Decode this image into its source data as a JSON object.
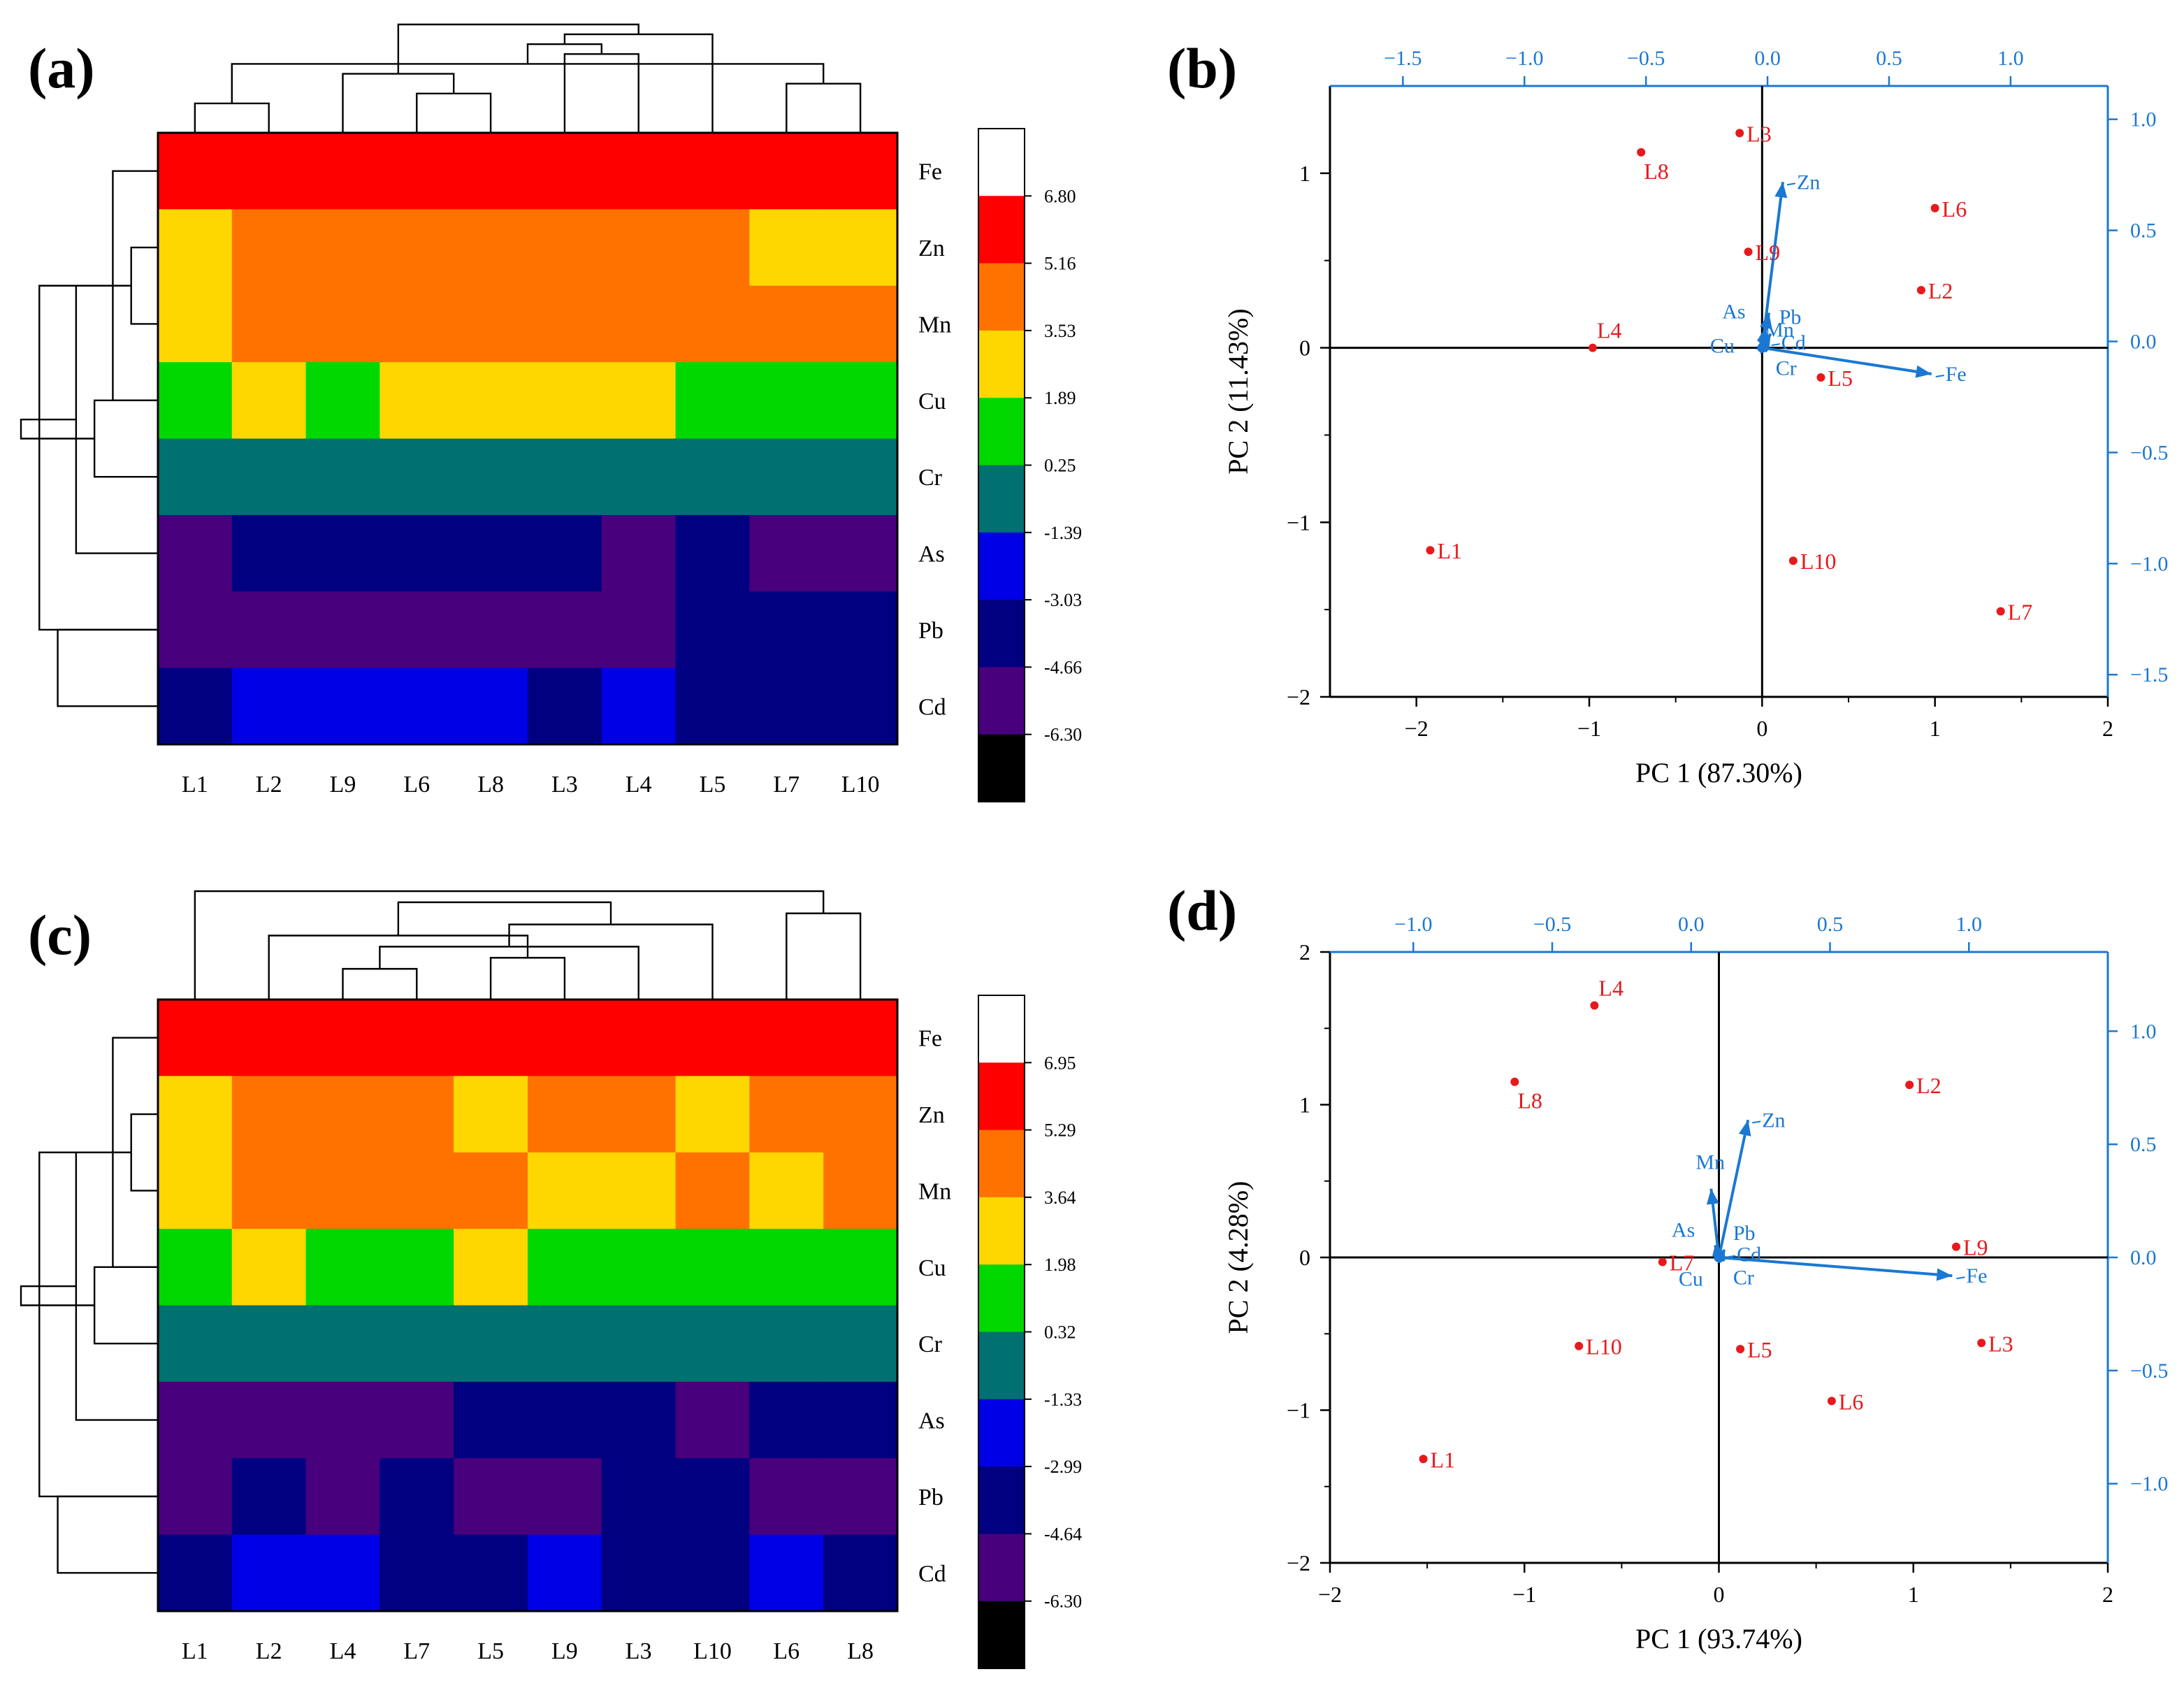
{
  "colors": {
    "scale": [
      "#000000",
      "#48007d",
      "#000080",
      "#0000e6",
      "#007070",
      "#00d800",
      "#ffd700",
      "#ff7200",
      "#ff0000",
      "#ffffff"
    ],
    "axis": "#000000",
    "pc_axis": "#1a78d2",
    "point": "#e8191c",
    "vector": "#1a78d2"
  },
  "chart_data": [
    {
      "panel": "(a)",
      "type": "heatmap",
      "rows": [
        "Fe",
        "Zn",
        "Mn",
        "Cu",
        "Cr",
        "As",
        "Pb",
        "Cd"
      ],
      "columns": [
        "L1",
        "L2",
        "L9",
        "L6",
        "L8",
        "L3",
        "L4",
        "L5",
        "L7",
        "L10"
      ],
      "color_levels": [
        8,
        7,
        7,
        5,
        4,
        1,
        1,
        2
      ],
      "values": [
        [
          8,
          8,
          8,
          8,
          8,
          8,
          8,
          8,
          8,
          8
        ],
        [
          6,
          7,
          7,
          7,
          7,
          7,
          7,
          7,
          6,
          6
        ],
        [
          6,
          7,
          7,
          7,
          7,
          7,
          7,
          7,
          7,
          7
        ],
        [
          5,
          6,
          5,
          6,
          6,
          6,
          6,
          5,
          5,
          5
        ],
        [
          4,
          4,
          4,
          4,
          4,
          4,
          4,
          4,
          4,
          4
        ],
        [
          1,
          2,
          2,
          2,
          2,
          2,
          1,
          2,
          1,
          1
        ],
        [
          1,
          1,
          1,
          1,
          1,
          1,
          1,
          2,
          2,
          2
        ],
        [
          2,
          3,
          3,
          3,
          3,
          2,
          3,
          2,
          2,
          2
        ]
      ],
      "colorbar_ticks": [
        "6.80",
        "5.16",
        "3.53",
        "1.89",
        "0.25",
        "-1.39",
        "-3.03",
        "-4.66",
        "-6.30"
      ],
      "column_dendrogram": [
        [
          0,
          1
        ],
        [
          3,
          4
        ],
        [
          8,
          9
        ],
        [
          2,
          11
        ],
        [
          10,
          12
        ],
        [
          5,
          6
        ],
        [
          14,
          15
        ],
        [
          7,
          16
        ],
        [
          13,
          17
        ]
      ],
      "row_dendrogram": [
        [
          1,
          2
        ],
        [
          0,
          3
        ],
        [
          3,
          4
        ],
        [
          9,
          5
        ],
        [
          6,
          7
        ],
        [
          8,
          6
        ],
        [
          10,
          11
        ]
      ]
    },
    {
      "panel": "(b)",
      "type": "scatter",
      "title": "",
      "xlabel": "PC 1 (87.30%)",
      "ylabel": "PC 2 (11.43%)",
      "xlim": [
        -2.5,
        2
      ],
      "ylim": [
        -2,
        1.5
      ],
      "x_ticks": [
        -2,
        -1,
        0,
        1,
        2
      ],
      "y_ticks": [
        -2,
        -1,
        0,
        1
      ],
      "x_tick_labels": [
        "−2",
        "−1",
        "0",
        "1",
        "2"
      ],
      "y_tick_labels": [
        "−2",
        "−1",
        "0",
        "1"
      ],
      "top_xlim": [
        -1.8,
        1.4
      ],
      "right_ylim": [
        -1.6,
        1.15
      ],
      "top_ticks": [
        -1.5,
        -1.0,
        -0.5,
        0.0,
        0.5,
        1.0
      ],
      "right_ticks": [
        -1.5,
        -1.0,
        -0.5,
        0.0,
        0.5,
        1.0
      ],
      "top_tick_labels": [
        "−1.5",
        "−1.0",
        "−0.5",
        "0.0",
        "0.5",
        "1.0"
      ],
      "right_tick_labels": [
        "−1.5",
        "−1.0",
        "−0.5",
        "0.0",
        "0.5",
        "1.0"
      ],
      "points": [
        {
          "label": "L1",
          "x": -1.92,
          "y": -1.16
        },
        {
          "label": "L2",
          "x": 0.92,
          "y": 0.33
        },
        {
          "label": "L3",
          "x": -0.13,
          "y": 1.23
        },
        {
          "label": "L4",
          "x": -0.98,
          "y": 0.0
        },
        {
          "label": "L5",
          "x": 0.34,
          "y": -0.17
        },
        {
          "label": "L6",
          "x": 1.0,
          "y": 0.8
        },
        {
          "label": "L7",
          "x": 1.38,
          "y": -1.51
        },
        {
          "label": "L8",
          "x": -0.7,
          "y": 1.12
        },
        {
          "label": "L9",
          "x": -0.08,
          "y": 0.55
        },
        {
          "label": "L10",
          "x": 0.18,
          "y": -1.22
        }
      ],
      "loadings": [
        {
          "label": "Fe",
          "x": 0.98,
          "y": -0.15
        },
        {
          "label": "Zn",
          "x": 0.12,
          "y": 0.95
        },
        {
          "label": "Mn",
          "x": 0.04,
          "y": 0.2
        },
        {
          "label": "As",
          "x": 0.02,
          "y": 0.12
        },
        {
          "label": "Pb",
          "x": 0.05,
          "y": 0.08
        },
        {
          "label": "Cd",
          "x": 0.03,
          "y": 0.03
        },
        {
          "label": "Cr",
          "x": 0.03,
          "y": -0.02
        },
        {
          "label": "Cu",
          "x": -0.01,
          "y": 0.02
        }
      ],
      "point_label_pos": {
        "L1": "right",
        "L2": "right",
        "L3": "right",
        "L4": "top-right",
        "L5": "right",
        "L6": "right",
        "L7": "right",
        "L8": "below-right",
        "L9": "right",
        "L10": "right"
      },
      "loading_label_pos": {
        "Fe": "right",
        "Zn": "right",
        "Mn": "below-right",
        "As": "upper-left",
        "Pb": "upper-right",
        "Cd": "right",
        "Cr": "lower-right",
        "Cu": "left"
      }
    },
    {
      "panel": "(c)",
      "type": "heatmap",
      "rows": [
        "Fe",
        "Zn",
        "Mn",
        "Cu",
        "Cr",
        "As",
        "Pb",
        "Cd"
      ],
      "columns": [
        "L1",
        "L2",
        "L4",
        "L7",
        "L5",
        "L9",
        "L3",
        "L10",
        "L6",
        "L8"
      ],
      "values": [
        [
          8,
          8,
          8,
          8,
          8,
          8,
          8,
          8,
          8,
          8
        ],
        [
          6,
          7,
          7,
          7,
          6,
          7,
          7,
          6,
          7,
          7
        ],
        [
          6,
          7,
          7,
          7,
          7,
          6,
          6,
          7,
          6,
          7
        ],
        [
          5,
          6,
          5,
          5,
          6,
          5,
          5,
          5,
          5,
          5
        ],
        [
          4,
          4,
          4,
          4,
          4,
          4,
          4,
          4,
          4,
          4
        ],
        [
          1,
          1,
          1,
          1,
          2,
          2,
          2,
          1,
          2,
          2
        ],
        [
          1,
          2,
          1,
          2,
          1,
          1,
          2,
          2,
          1,
          1
        ],
        [
          2,
          3,
          3,
          2,
          2,
          3,
          2,
          2,
          3,
          2
        ]
      ],
      "colorbar_ticks": [
        "6.95",
        "5.29",
        "3.64",
        "1.98",
        "0.32",
        "-1.33",
        "-2.99",
        "-4.64",
        "-6.30"
      ],
      "column_dendrogram": [
        [
          2,
          3
        ],
        [
          4,
          5
        ],
        [
          10,
          6
        ],
        [
          11,
          1
        ],
        [
          12,
          7
        ],
        [
          8,
          9
        ],
        [
          13,
          14
        ],
        [
          0,
          15
        ]
      ],
      "row_dendrogram": [
        [
          1,
          2
        ],
        [
          0,
          3
        ],
        [
          3,
          4
        ],
        [
          9,
          5
        ],
        [
          6,
          7
        ],
        [
          8,
          6
        ],
        [
          10,
          11
        ]
      ]
    },
    {
      "panel": "(d)",
      "type": "scatter",
      "title": "",
      "xlabel": "PC 1 (93.74%)",
      "ylabel": "PC 2 (4.28%)",
      "xlim": [
        -2,
        2
      ],
      "ylim": [
        -2,
        2
      ],
      "x_ticks": [
        -2,
        -1,
        0,
        1,
        2
      ],
      "y_ticks": [
        -2,
        -1,
        0,
        1,
        2
      ],
      "x_tick_labels": [
        "−2",
        "−1",
        "0",
        "1",
        "2"
      ],
      "y_tick_labels": [
        "−2",
        "−1",
        "0",
        "1",
        "2"
      ],
      "top_xlim": [
        -1.3,
        1.5
      ],
      "right_ylim": [
        -1.35,
        1.35
      ],
      "top_ticks": [
        -1.0,
        -0.5,
        0.0,
        0.5,
        1.0
      ],
      "right_ticks": [
        -1.0,
        -0.5,
        0.0,
        0.5,
        1.0
      ],
      "top_tick_labels": [
        "−1.0",
        "−0.5",
        "0.0",
        "0.5",
        "1.0"
      ],
      "right_tick_labels": [
        "−1.0",
        "−0.5",
        "0.0",
        "0.5",
        "1.0"
      ],
      "points": [
        {
          "label": "L1",
          "x": -1.52,
          "y": -1.32
        },
        {
          "label": "L2",
          "x": 0.98,
          "y": 1.13
        },
        {
          "label": "L3",
          "x": 1.35,
          "y": -0.56
        },
        {
          "label": "L4",
          "x": -0.64,
          "y": 1.65
        },
        {
          "label": "L5",
          "x": 0.11,
          "y": -0.6
        },
        {
          "label": "L6",
          "x": 0.58,
          "y": -0.94
        },
        {
          "label": "L7",
          "x": -0.29,
          "y": -0.03
        },
        {
          "label": "L8",
          "x": -1.05,
          "y": 1.15
        },
        {
          "label": "L9",
          "x": 1.22,
          "y": 0.07
        },
        {
          "label": "L10",
          "x": -0.72,
          "y": -0.58
        }
      ],
      "loadings": [
        {
          "label": "Fe",
          "x": 1.2,
          "y": -0.12
        },
        {
          "label": "Zn",
          "x": 0.15,
          "y": 0.9
        },
        {
          "label": "Mn",
          "x": -0.04,
          "y": 0.45
        },
        {
          "label": "As",
          "x": -0.02,
          "y": 0.08
        },
        {
          "label": "Pb",
          "x": 0.03,
          "y": 0.05
        },
        {
          "label": "Cd",
          "x": 0.02,
          "y": 0.02
        },
        {
          "label": "Cr",
          "x": 0.03,
          "y": -0.02
        },
        {
          "label": "Cu",
          "x": -0.02,
          "y": -0.02
        }
      ],
      "point_label_pos": {
        "L1": "right",
        "L2": "right",
        "L3": "right",
        "L4": "top-right",
        "L5": "right",
        "L6": "right",
        "L7": "right",
        "L8": "below-right",
        "L9": "right",
        "L10": "right"
      },
      "loading_label_pos": {
        "Fe": "right",
        "Zn": "right",
        "Mn": "top",
        "As": "upper-left",
        "Pb": "upper-right",
        "Cd": "right",
        "Cr": "lower-right",
        "Cu": "lower-left"
      }
    }
  ]
}
